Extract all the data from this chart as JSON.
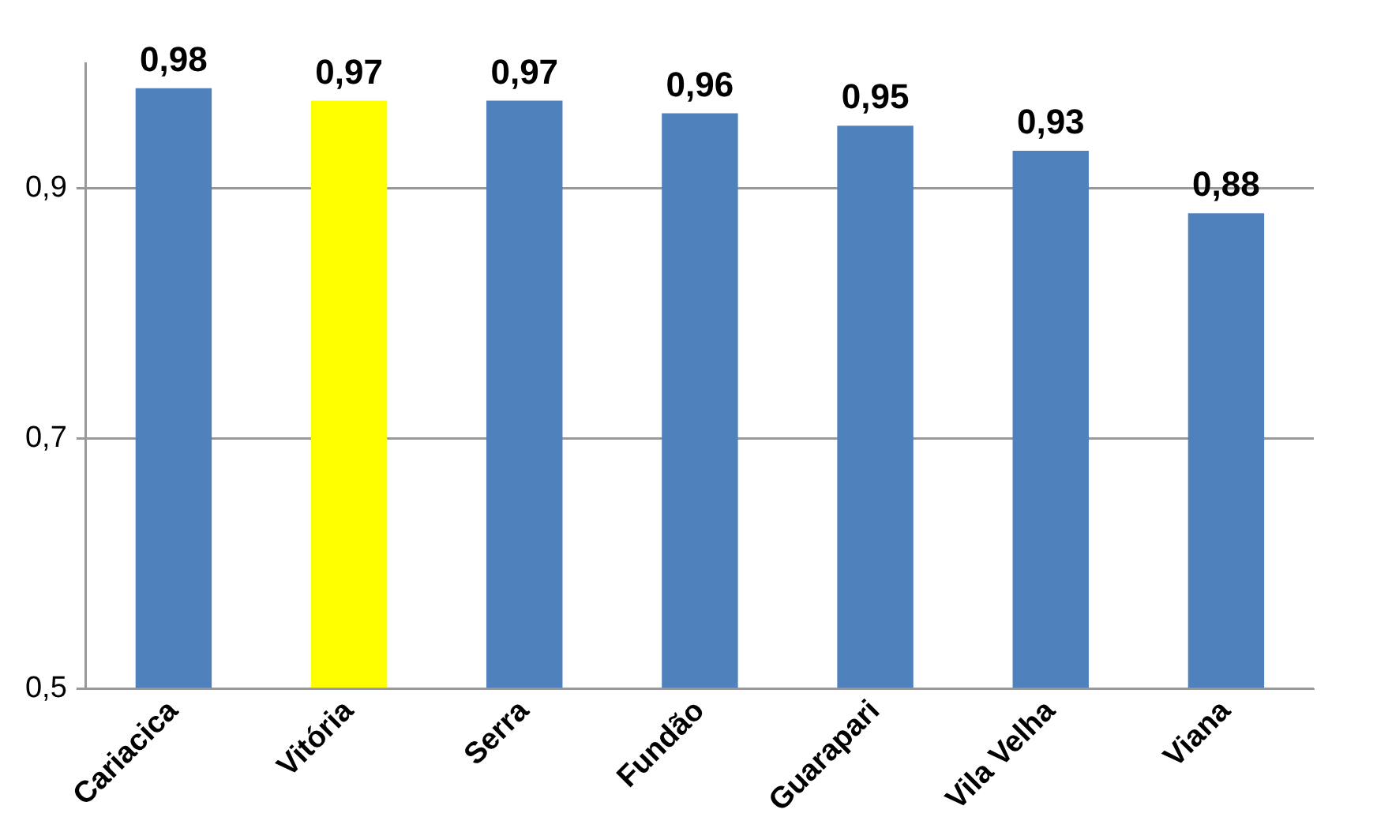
{
  "chart_data": {
    "type": "bar",
    "categories": [
      "Cariacica",
      "Vitória",
      "Serra",
      "Fundão",
      "Guarapari",
      "Vila Velha",
      "Viana"
    ],
    "values": [
      0.98,
      0.97,
      0.97,
      0.96,
      0.95,
      0.93,
      0.88
    ],
    "value_labels": [
      "0,98",
      "0,97",
      "0,97",
      "0,96",
      "0,95",
      "0,93",
      "0,88"
    ],
    "colors": [
      "#4f81bd",
      "#ffff00",
      "#4f81bd",
      "#4f81bd",
      "#4f81bd",
      "#4f81bd",
      "#4f81bd"
    ],
    "ylim": [
      0.5,
      1.0
    ],
    "yticks": [
      {
        "value": 0.5,
        "label": "0,5"
      },
      {
        "value": 0.7,
        "label": "0,7"
      },
      {
        "value": 0.9,
        "label": "0,9"
      }
    ],
    "grid": "y",
    "legend": false
  }
}
